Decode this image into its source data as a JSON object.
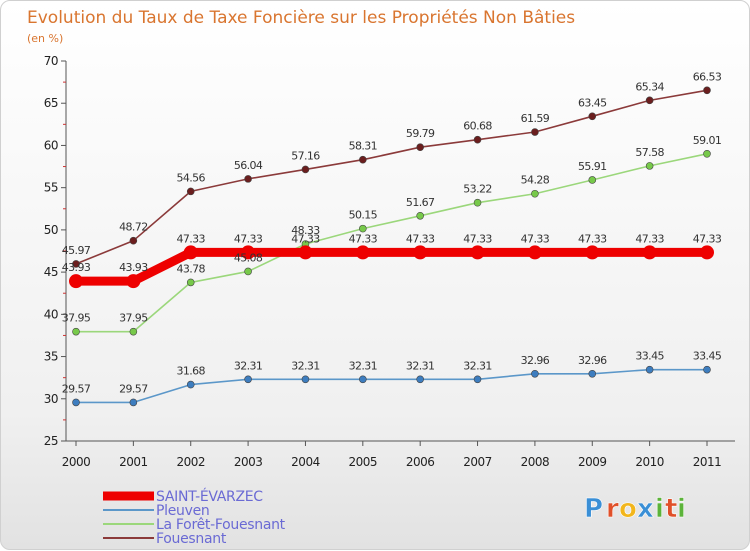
{
  "chart_data": {
    "type": "line",
    "title": "Evolution du Taux de Taxe Foncière sur les Propriétés Non Bâties",
    "subtitle": "(en %)",
    "xlabel": "",
    "ylabel": "",
    "ylim": [
      25,
      70
    ],
    "yticks": [
      25,
      30,
      35,
      40,
      45,
      50,
      55,
      60,
      65,
      70
    ],
    "ytick_labels": [
      "25",
      "30",
      "35",
      "40",
      "45",
      "50",
      "55",
      "60",
      "65",
      "70"
    ],
    "grid": false,
    "legend_position": "bottom-left",
    "categories": [
      "2000",
      "2001",
      "2002",
      "2003",
      "2004",
      "2005",
      "2006",
      "2007",
      "2008",
      "2009",
      "2010",
      "2011"
    ],
    "series": [
      {
        "name": "Pleuven",
        "color": "#5b97c9",
        "point_color": "#3d7dbf",
        "values": [
          29.57,
          29.57,
          31.68,
          32.31,
          32.31,
          32.31,
          32.31,
          32.31,
          32.96,
          32.96,
          33.45,
          33.45
        ],
        "labels": [
          "29.57",
          "29.57",
          "31.68",
          "32.31",
          "32.31",
          "32.31",
          "32.31",
          "32.31",
          "32.96",
          "32.96",
          "33.45",
          "33.45"
        ]
      },
      {
        "name": "La Forêt-Fouesnant",
        "color": "#9bd77b",
        "point_color": "#77c94a",
        "values": [
          37.95,
          37.95,
          43.78,
          45.08,
          48.33,
          50.15,
          51.67,
          53.22,
          54.28,
          55.91,
          57.58,
          59.01
        ],
        "labels": [
          "37.95",
          "37.95",
          "43.78",
          "45.08",
          "48.33",
          "50.15",
          "51.67",
          "53.22",
          "54.28",
          "55.91",
          "57.58",
          "59.01"
        ]
      },
      {
        "name": "Fouesnant",
        "color": "#8b3a3a",
        "point_color": "#6b1e1e",
        "values": [
          45.97,
          48.72,
          54.56,
          56.04,
          57.16,
          58.31,
          59.79,
          60.68,
          61.59,
          63.45,
          65.34,
          66.53
        ],
        "labels": [
          "45.97",
          "48.72",
          "54.56",
          "56.04",
          "57.16",
          "58.31",
          "59.79",
          "60.68",
          "61.59",
          "63.45",
          "65.34",
          "66.53"
        ]
      },
      {
        "name": "SAINT-ÉVARZEC",
        "color": "#ee0000",
        "point_color": "#ee0000",
        "thick": true,
        "values": [
          43.93,
          43.93,
          47.33,
          47.33,
          47.33,
          47.33,
          47.33,
          47.33,
          47.33,
          47.33,
          47.33,
          47.33
        ],
        "labels": [
          "43.93",
          "43.93",
          "47.33",
          "47.33",
          "47.33",
          "47.33",
          "47.33",
          "47.33",
          "47.33",
          "47.33",
          "47.33",
          "47.33"
        ]
      }
    ],
    "legend": [
      {
        "name": "SAINT-ÉVARZEC",
        "color": "#ee0000",
        "thick": true
      },
      {
        "name": "Pleuven",
        "color": "#5b97c9",
        "thick": false
      },
      {
        "name": "La Forêt-Fouesnant",
        "color": "#9bd77b",
        "thick": false
      },
      {
        "name": "Fouesnant",
        "color": "#8b3a3a",
        "thick": false
      }
    ]
  },
  "logo": {
    "letters": [
      "P",
      "r",
      "o",
      "x",
      "i",
      "t",
      "i"
    ],
    "colors": [
      "#3a8fd6",
      "#e0502a",
      "#f2b61c",
      "#3a8fd6",
      "#5cb33a",
      "#e0502a",
      "#5cb33a"
    ]
  }
}
